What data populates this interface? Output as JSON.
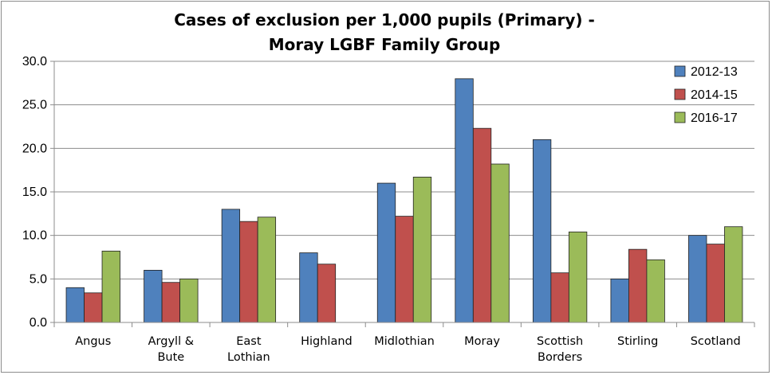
{
  "chart_data": {
    "type": "bar",
    "title_lines": [
      "Cases of exclusion per 1,000 pupils (Primary) -",
      "Moray LGBF Family Group"
    ],
    "categories": [
      [
        "Angus"
      ],
      [
        "Argyll &",
        "Bute"
      ],
      [
        "East",
        "Lothian"
      ],
      [
        "Highland"
      ],
      [
        "Midlothian"
      ],
      [
        "Moray"
      ],
      [
        "Scottish",
        "Borders"
      ],
      [
        "Stirling"
      ],
      [
        "Scotland"
      ]
    ],
    "series": [
      {
        "name": "2012-13",
        "color": "#4f81bd",
        "values": [
          4.0,
          6.0,
          13.0,
          8.0,
          16.0,
          28.0,
          21.0,
          5.0,
          10.0
        ]
      },
      {
        "name": "2014-15",
        "color": "#c0504d",
        "values": [
          3.4,
          4.6,
          11.6,
          6.7,
          12.2,
          22.3,
          5.7,
          8.4,
          9.0
        ]
      },
      {
        "name": "2016-17",
        "color": "#9bbb59",
        "values": [
          8.2,
          5.0,
          12.1,
          null,
          16.7,
          18.2,
          10.4,
          7.2,
          11.0
        ]
      }
    ],
    "ylim": [
      0,
      30
    ],
    "yticks": [
      "0.0",
      "5.0",
      "10.0",
      "15.0",
      "20.0",
      "25.0",
      "30.0"
    ],
    "grid": true,
    "legend_position": "top-right"
  }
}
